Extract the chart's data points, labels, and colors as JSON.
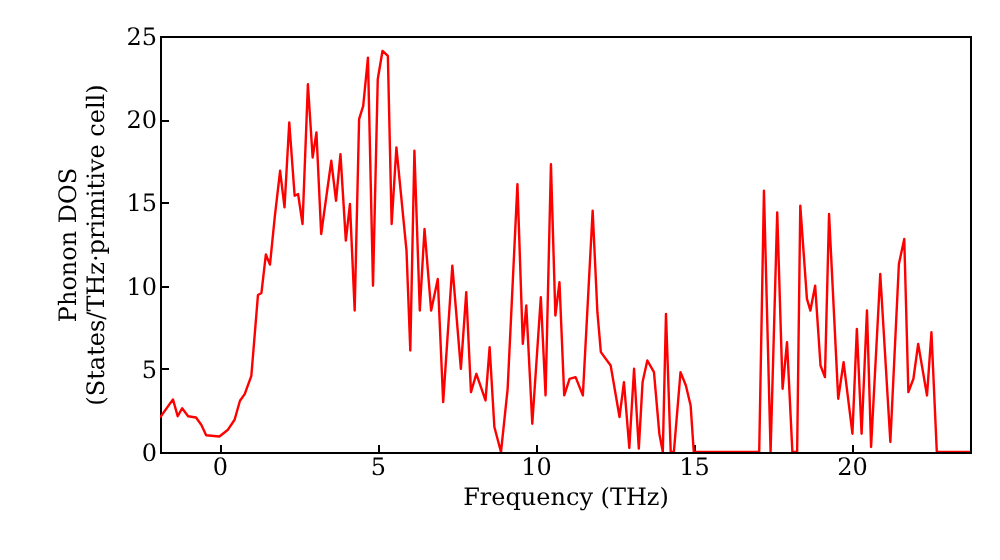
{
  "chart_data": {
    "type": "line",
    "xlabel": "Frequency (THz)",
    "ylabel": "Phonon DOS\n(States/THz·primitive cell)",
    "xlim": [
      -1.88,
      23.75
    ],
    "ylim": [
      0,
      25
    ],
    "xticks": [
      0,
      5,
      10,
      15,
      20
    ],
    "yticks": [
      0,
      5,
      10,
      15,
      20,
      25
    ],
    "grid": false,
    "marker": "none",
    "line_style": "solid",
    "x": [
      -1.88,
      -1.47,
      -1.32,
      -1.18,
      -0.99,
      -0.74,
      -0.57,
      -0.42,
      0,
      0.27,
      0.48,
      0.65,
      0.8,
      1.01,
      1.22,
      1.33,
      1.47,
      1.6,
      1.75,
      1.92,
      2.06,
      2.21,
      2.38,
      2.49,
      2.63,
      2.8,
      2.95,
      3.07,
      3.22,
      3.54,
      3.69,
      3.83,
      4.0,
      4.13,
      4.28,
      4.42,
      4.55,
      4.7,
      4.86,
      5.01,
      5.16,
      5.33,
      5.45,
      5.6,
      5.92,
      6.04,
      6.17,
      6.34,
      6.49,
      6.7,
      6.91,
      7.08,
      7.37,
      7.64,
      7.81,
      7.96,
      8.13,
      8.42,
      8.55,
      8.7,
      8.91,
      9.12,
      9.43,
      9.6,
      9.71,
      9.9,
      10.17,
      10.32,
      10.49,
      10.63,
      10.76,
      10.91,
      11.08,
      11.27,
      11.5,
      11.81,
      11.96,
      12.07,
      12.38,
      12.66,
      12.8,
      12.97,
      13.12,
      13.27,
      13.39,
      13.54,
      13.75,
      13.92,
      14.03,
      14.13,
      14.28,
      14.38,
      14.59,
      14.76,
      14.91,
      15.01,
      17.08,
      17.23,
      17.44,
      17.65,
      17.82,
      17.96,
      18.13,
      18.28,
      18.38,
      18.59,
      18.7,
      18.85,
      19.02,
      19.16,
      19.29,
      19.58,
      19.75,
      20.03,
      20.17,
      20.32,
      20.49,
      20.62,
      20.91,
      21.23,
      21.5,
      21.67,
      21.8,
      21.96,
      22.11,
      22.39,
      22.53,
      22.7,
      23.75
    ],
    "series": [
      {
        "color": "#ff0000",
        "values": [
          2.07,
          3.16,
          2.15,
          2.63,
          2.15,
          2.07,
          1.62,
          1.01,
          0.93,
          1.34,
          1.94,
          3.08,
          3.48,
          4.58,
          9.44,
          9.56,
          11.87,
          11.26,
          14.1,
          16.9,
          14.7,
          19.8,
          15.4,
          15.5,
          13.7,
          22.1,
          17.7,
          19.2,
          13.1,
          17.5,
          15.1,
          17.9,
          12.7,
          14.9,
          8.5,
          20.0,
          20.8,
          23.7,
          10.0,
          22.4,
          24.1,
          23.8,
          13.7,
          18.3,
          12.1,
          6.1,
          18.1,
          8.5,
          13.4,
          8.5,
          10.4,
          3.0,
          11.2,
          5.0,
          9.6,
          3.6,
          4.7,
          3.1,
          6.3,
          1.5,
          0,
          3.8,
          16.1,
          6.5,
          8.8,
          1.7,
          9.3,
          3.4,
          17.3,
          8.2,
          10.2,
          3.4,
          4.4,
          4.5,
          3.4,
          14.5,
          8.4,
          6.0,
          5.2,
          2.1,
          4.2,
          0.24,
          5.0,
          0.2,
          4.2,
          5.5,
          4.8,
          1.1,
          0,
          8.3,
          0,
          0,
          4.8,
          4.0,
          2.8,
          0,
          0,
          15.7,
          0,
          14.4,
          3.8,
          6.6,
          0,
          0,
          14.8,
          9.2,
          8.5,
          10.0,
          5.2,
          4.5,
          14.3,
          3.2,
          5.4,
          1.1,
          7.4,
          1.1,
          8.5,
          0.3,
          10.7,
          0.6,
          11.3,
          12.8,
          3.6,
          4.4,
          6.5,
          3.4,
          7.2,
          0,
          0
        ]
      }
    ]
  }
}
